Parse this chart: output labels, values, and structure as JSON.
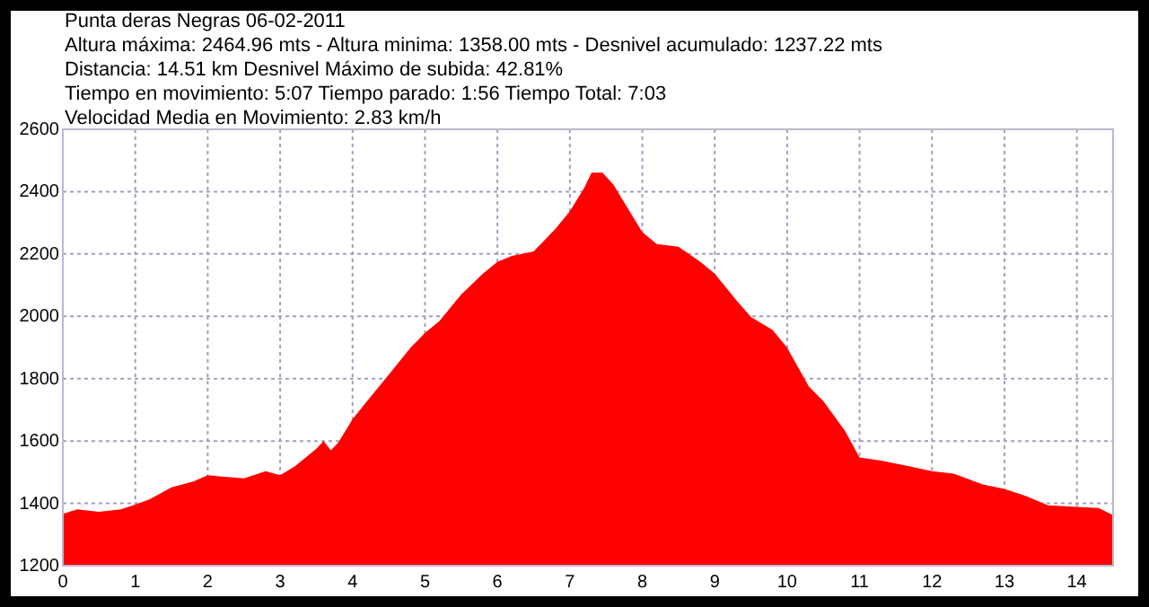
{
  "chart_data": {
    "type": "area",
    "title": "Punta deras Negras 06-02-2011",
    "annotations": [
      "Altura máxima: 2464.96 mts - Altura minima: 1358.00 mts - Desnivel acumulado: 1237.22 mts",
      "Distancia: 14.51 km Desnivel Máximo de subida: 42.81%",
      "Tiempo en movimiento: 5:07 Tiempo parado: 1:56 Tiempo Total: 7:03",
      "Velocidad Media en Movimiento: 2.83 km/h"
    ],
    "x": [
      0,
      0.2,
      0.5,
      0.8,
      1,
      1.2,
      1.5,
      1.8,
      2,
      2.5,
      2.8,
      3,
      3.2,
      3.5,
      3.6,
      3.7,
      3.8,
      4,
      4.2,
      4.5,
      4.8,
      5,
      5.2,
      5.5,
      5.8,
      6,
      6.2,
      6.5,
      6.8,
      7,
      7.2,
      7.3,
      7.45,
      7.6,
      8,
      8.2,
      8.5,
      8.8,
      9,
      9.3,
      9.5,
      9.8,
      10,
      10.3,
      10.5,
      10.8,
      11,
      11.3,
      11.7,
      12,
      12.3,
      12.7,
      13,
      13.3,
      13.6,
      14,
      14.3,
      14.5
    ],
    "series": [
      {
        "color": "#ff0000",
        "values": [
          1366,
          1381,
          1373,
          1381,
          1396,
          1413,
          1451,
          1470,
          1490,
          1480,
          1503,
          1490,
          1518,
          1575,
          1600,
          1570,
          1594,
          1670,
          1728,
          1813,
          1899,
          1947,
          1985,
          2070,
          2137,
          2175,
          2194,
          2208,
          2280,
          2337,
          2413,
          2461,
          2461,
          2423,
          2270,
          2232,
          2223,
          2175,
          2137,
          2051,
          1998,
          1956,
          1899,
          1775,
          1728,
          1632,
          1547,
          1537,
          1518,
          1503,
          1495,
          1461,
          1446,
          1423,
          1394,
          1389,
          1385,
          1362
        ]
      }
    ],
    "xlim": [
      0,
      14.5
    ],
    "xticks": [
      0,
      1,
      2,
      3,
      4,
      5,
      6,
      7,
      8,
      9,
      10,
      11,
      12,
      13,
      14
    ],
    "ylim": [
      1200,
      2600
    ],
    "yticks": [
      1200,
      1400,
      1600,
      1800,
      2000,
      2200,
      2400,
      2600
    ],
    "grid": true,
    "line_style": "dotted"
  }
}
